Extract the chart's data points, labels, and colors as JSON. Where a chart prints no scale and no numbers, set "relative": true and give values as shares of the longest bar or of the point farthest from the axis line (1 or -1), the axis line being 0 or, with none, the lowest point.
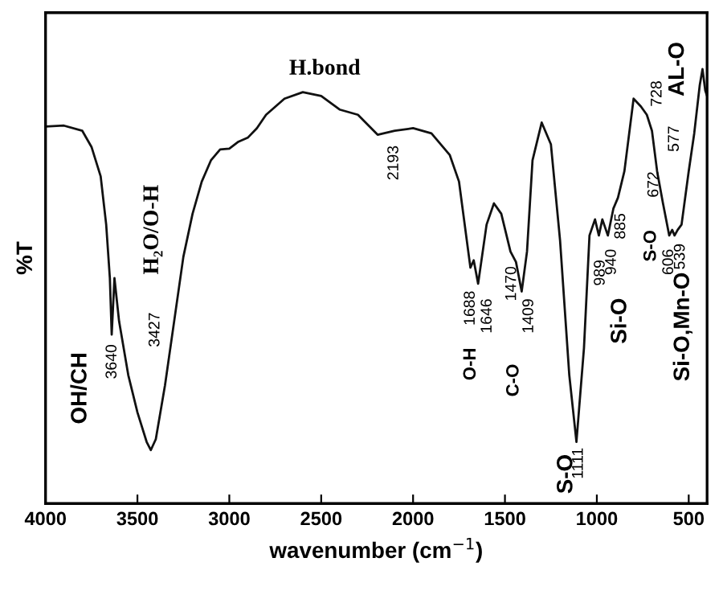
{
  "chart_data": {
    "type": "line",
    "relative": true,
    "xlabel": "wavenumber (cm$^{−1}$)",
    "ylabel": "%T",
    "xlim": [
      4000,
      400
    ],
    "xticks": [
      4000,
      3500,
      3000,
      2500,
      2000,
      1500,
      1000,
      500
    ],
    "grid": false,
    "marker": "none",
    "line_style": "solid",
    "series": [
      {
        "color": "#111111",
        "x": [
          4000,
          3900,
          3800,
          3750,
          3700,
          3670,
          3650,
          3640,
          3625,
          3600,
          3550,
          3500,
          3450,
          3427,
          3400,
          3350,
          3300,
          3250,
          3200,
          3150,
          3100,
          3050,
          3000,
          2950,
          2900,
          2850,
          2800,
          2700,
          2600,
          2500,
          2400,
          2300,
          2193,
          2100,
          2000,
          1900,
          1800,
          1750,
          1688,
          1670,
          1646,
          1600,
          1560,
          1520,
          1470,
          1440,
          1409,
          1380,
          1350,
          1300,
          1250,
          1200,
          1150,
          1111,
          1070,
          1040,
          1010,
          989,
          970,
          940,
          910,
          885,
          850,
          800,
          760,
          728,
          700,
          672,
          640,
          606,
          590,
          577,
          560,
          539,
          500,
          470,
          440,
          425,
          410,
          400
        ],
        "values": [
          0.868,
          0.87,
          0.858,
          0.821,
          0.753,
          0.642,
          0.519,
          0.389,
          0.519,
          0.42,
          0.296,
          0.21,
          0.142,
          0.123,
          0.148,
          0.272,
          0.42,
          0.568,
          0.667,
          0.741,
          0.79,
          0.815,
          0.817,
          0.833,
          0.842,
          0.864,
          0.895,
          0.932,
          0.947,
          0.938,
          0.907,
          0.895,
          0.849,
          0.858,
          0.864,
          0.852,
          0.802,
          0.741,
          0.543,
          0.56,
          0.506,
          0.642,
          0.691,
          0.667,
          0.58,
          0.556,
          0.488,
          0.58,
          0.79,
          0.877,
          0.827,
          0.605,
          0.296,
          0.142,
          0.358,
          0.617,
          0.654,
          0.617,
          0.654,
          0.617,
          0.679,
          0.704,
          0.765,
          0.932,
          0.914,
          0.895,
          0.858,
          0.765,
          0.691,
          0.617,
          0.63,
          0.617,
          0.63,
          0.642,
          0.765,
          0.852,
          0.963,
          1.0,
          0.951,
          0.938
        ]
      }
    ],
    "annotations": [
      "OH/CH",
      "3640",
      "H₂O/O-H",
      "3427",
      "H.bond",
      "2193",
      "1688",
      "1646",
      "O-H",
      "1470",
      "1409",
      "C-O",
      "S-O",
      "1111",
      "989",
      "940",
      "885",
      "Si-O",
      "S-O",
      "672",
      "606",
      "539",
      "577",
      "728",
      "AL-O",
      "Si-O,Mn-O"
    ]
  }
}
